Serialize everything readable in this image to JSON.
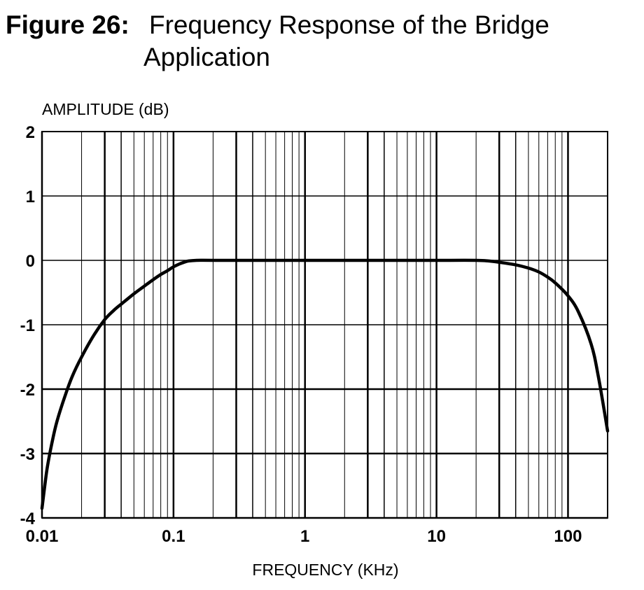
{
  "figure": {
    "label": "Figure 26:",
    "title_line1": "Frequency Response of the Bridge",
    "title_line2": "Application"
  },
  "chart_data": {
    "type": "line",
    "ylabel": "AMPLITUDE (dB)",
    "xlabel": "FREQUENCY (KHz)",
    "x_scale": "log",
    "xlim": [
      0.01,
      200
    ],
    "ylim": [
      -4,
      2
    ],
    "grid": true,
    "x_ticks": [
      {
        "value": 0.01,
        "label": "0.01"
      },
      {
        "value": 0.1,
        "label": "0.1"
      },
      {
        "value": 1,
        "label": "1"
      },
      {
        "value": 10,
        "label": "10"
      },
      {
        "value": 100,
        "label": "100"
      }
    ],
    "y_ticks": [
      {
        "value": 2,
        "label": "2"
      },
      {
        "value": 1,
        "label": "1"
      },
      {
        "value": 0,
        "label": "0"
      },
      {
        "value": -1,
        "label": "-1"
      },
      {
        "value": -2,
        "label": "-2"
      },
      {
        "value": -3,
        "label": "-3"
      },
      {
        "value": -4,
        "label": "-4"
      }
    ],
    "series": [
      {
        "color": "#000000",
        "x": [
          0.01,
          0.0105,
          0.011,
          0.012,
          0.013,
          0.015,
          0.017,
          0.02,
          0.025,
          0.03,
          0.035,
          0.04,
          0.05,
          0.06,
          0.07,
          0.08,
          0.09,
          0.1,
          0.11,
          0.12,
          0.13,
          0.15,
          0.2,
          0.5,
          1,
          5,
          10,
          20,
          25,
          30,
          40,
          50,
          60,
          70,
          80,
          100,
          120,
          150,
          170,
          200
        ],
        "y": [
          -3.85,
          -3.5,
          -3.2,
          -2.8,
          -2.5,
          -2.1,
          -1.8,
          -1.5,
          -1.15,
          -0.92,
          -0.78,
          -0.68,
          -0.52,
          -0.4,
          -0.3,
          -0.22,
          -0.16,
          -0.1,
          -0.06,
          -0.03,
          -0.01,
          0.0,
          0.0,
          0.0,
          0.0,
          0.0,
          0.0,
          0.0,
          -0.01,
          -0.03,
          -0.07,
          -0.12,
          -0.18,
          -0.26,
          -0.35,
          -0.55,
          -0.8,
          -1.3,
          -1.8,
          -2.65
        ]
      }
    ]
  }
}
